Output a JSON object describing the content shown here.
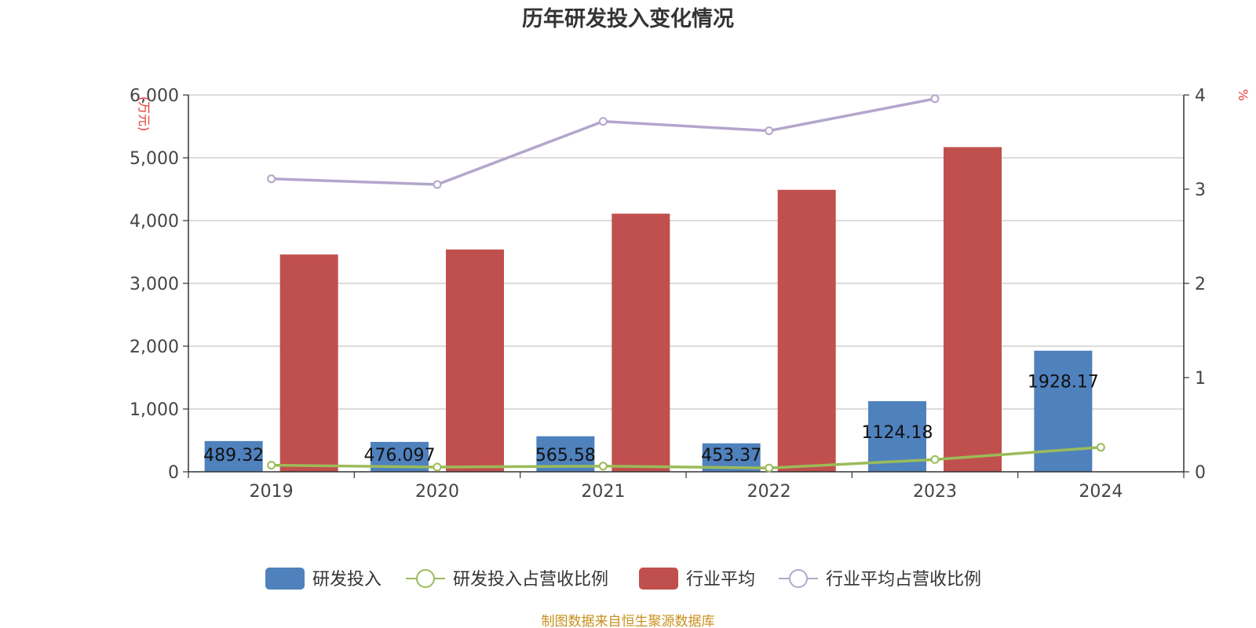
{
  "chart_data": {
    "type": "bar",
    "title": "历年研发投入变化情况",
    "categories": [
      "2019",
      "2020",
      "2021",
      "2022",
      "2023",
      "2024"
    ],
    "y_left": {
      "label": "(万元)",
      "range": [
        0,
        6000
      ],
      "ticks": [
        "0",
        "1,000",
        "2,000",
        "3,000",
        "4,000",
        "5,000",
        "6,000"
      ]
    },
    "y_right": {
      "label": "%",
      "range": [
        0,
        4
      ],
      "ticks": [
        "0",
        "1",
        "2",
        "3",
        "4"
      ]
    },
    "grid": true,
    "legend_position": "bottom",
    "series": [
      {
        "name": "研发投入",
        "type": "bar",
        "axis": "left",
        "color": "#4f81bd",
        "values": [
          489.32,
          476.097,
          565.58,
          453.37,
          1124.18,
          1928.17
        ],
        "labels": [
          "489.32",
          "476.097",
          "565.58",
          "453.37",
          "1124.18",
          "1928.17"
        ]
      },
      {
        "name": "研发投入占营收比例",
        "type": "line",
        "axis": "right",
        "color": "#9bbb59",
        "values": [
          0.07,
          0.05,
          0.06,
          0.04,
          0.13,
          0.26
        ]
      },
      {
        "name": "行业平均",
        "type": "bar",
        "axis": "left",
        "color": "#c0504d",
        "values": [
          3460,
          3540,
          4110,
          4490,
          5170,
          null
        ]
      },
      {
        "name": "行业平均占营收比例",
        "type": "line",
        "axis": "right",
        "color": "#b3a6cc",
        "values": [
          3.11,
          3.05,
          3.72,
          3.62,
          3.96,
          null
        ]
      }
    ]
  },
  "source_note": "制图数据来自恒生聚源数据库"
}
